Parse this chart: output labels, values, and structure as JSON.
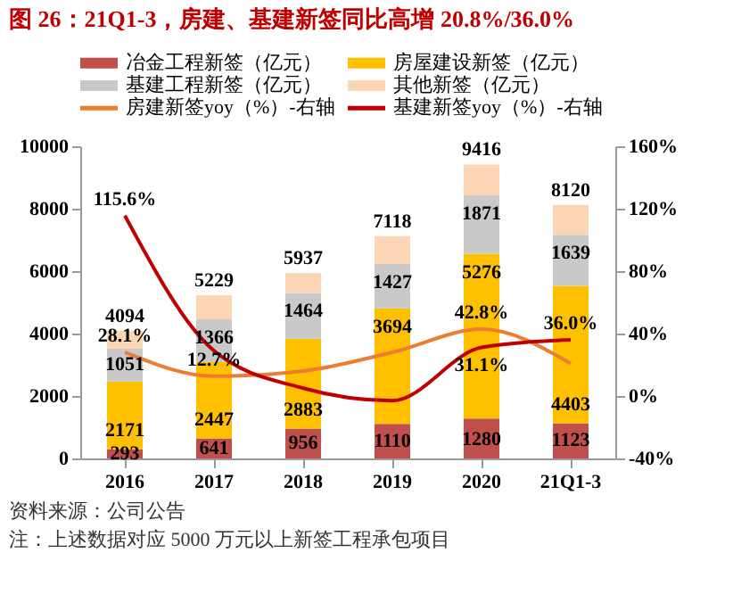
{
  "chart_data": {
    "type": "bar",
    "title": "图 26：21Q1-3，房建、基建新签同比高增 20.8%/36.0%",
    "categories": [
      "2016",
      "2017",
      "2018",
      "2019",
      "2020",
      "21Q1-3"
    ],
    "stacked": true,
    "series": [
      {
        "name": "冶金工程新签（亿元）",
        "color": "#c0504d",
        "values": [
          293,
          641,
          956,
          1110,
          1280,
          1123
        ],
        "value_labels": [
          "293",
          "641",
          "956",
          "1110",
          "1280",
          "1123"
        ]
      },
      {
        "name": "房屋建设新签（亿元）",
        "color": "#ffc000",
        "values": [
          2171,
          2447,
          2883,
          3694,
          5276,
          4403
        ],
        "value_labels": [
          "2171",
          "2447",
          "2883",
          "3694",
          "5276",
          "4403"
        ]
      },
      {
        "name": "基建工程新签（亿元）",
        "color": "#c9c9c9",
        "values": [
          1051,
          1366,
          1464,
          1427,
          1871,
          1639
        ],
        "value_labels": [
          "1051",
          "1366",
          "1464",
          "1427",
          "1871",
          "1639"
        ]
      },
      {
        "name": "其他新签（亿元）",
        "color": "#fcd5b5",
        "values": [
          579,
          775,
          634,
          887,
          989,
          955
        ]
      },
      {
        "name": "房建新签yoy（%）-右轴",
        "type": "line",
        "axis": "y2",
        "color": "#ed7d31",
        "values": [
          28.1,
          12.7,
          16,
          28,
          42.8,
          20.8
        ],
        "value_labels": [
          "28.1%",
          "12.7%",
          null,
          null,
          "42.8%",
          null
        ]
      },
      {
        "name": "基建新签yoy（%）-右轴",
        "type": "line",
        "axis": "y2",
        "color": "#c00000",
        "values": [
          115.6,
          29,
          5,
          -3,
          31.1,
          36.0
        ],
        "value_labels": [
          "115.6%",
          null,
          null,
          null,
          "31.1%",
          "36.0%"
        ]
      }
    ],
    "totals": [
      "4094",
      "5229",
      "5937",
      "7118",
      "9416",
      "8120"
    ],
    "ylim": [
      0,
      10000
    ],
    "yticks": [
      0,
      2000,
      4000,
      6000,
      8000,
      10000
    ],
    "y2lim": [
      -40,
      160
    ],
    "y2ticks": [
      {
        "value": -40,
        "label": "-40%"
      },
      {
        "value": 0,
        "label": "0%"
      },
      {
        "value": 40,
        "label": "40%"
      },
      {
        "value": 80,
        "label": "80%"
      },
      {
        "value": 120,
        "label": "120%"
      },
      {
        "value": 160,
        "label": "160%"
      }
    ],
    "legend": "top",
    "grid": false,
    "annotations": [
      "资料来源：公司公告",
      "注：上述数据对应 5000 万元以上新签工程承包项目"
    ]
  }
}
